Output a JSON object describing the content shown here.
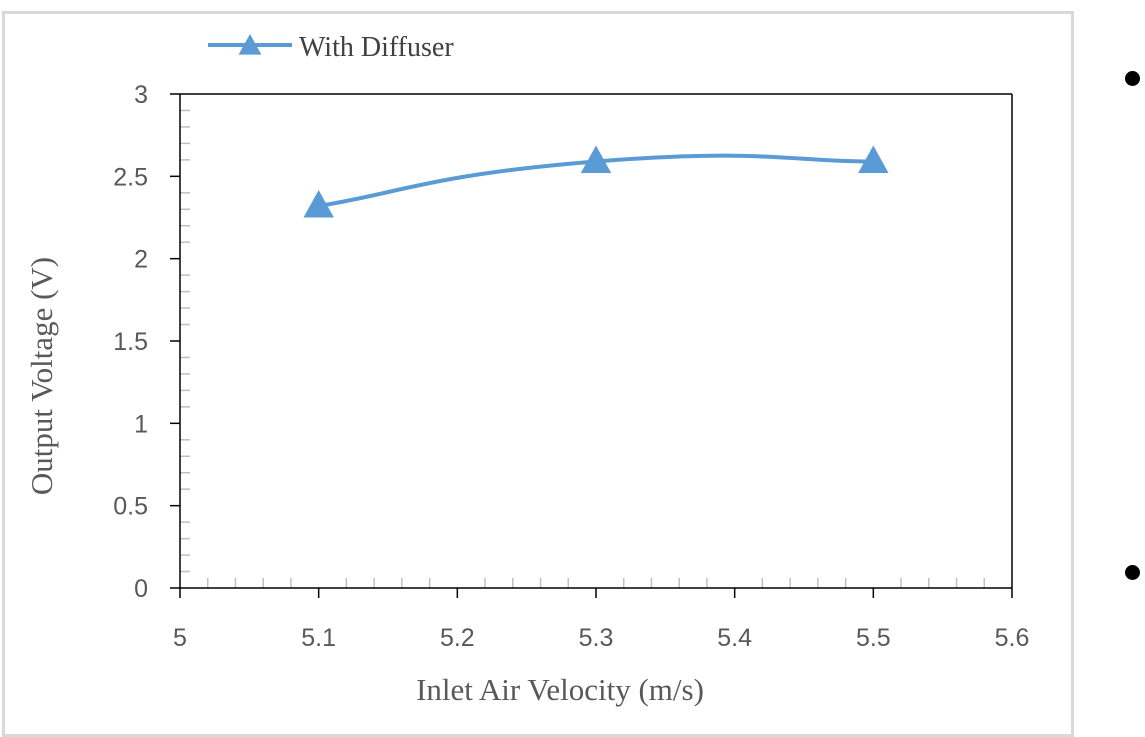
{
  "colors": {
    "series": "#5b9bd5",
    "axis": "#000000",
    "minor_tick": "#bfbfbf",
    "frame": "#d9d9d9",
    "text": "#595959"
  },
  "chart_data": {
    "type": "line",
    "title": "",
    "xlabel": "Inlet Air Velocity (m/s)",
    "ylabel": "Output Voltage (V)",
    "xlim": [
      5,
      5.6
    ],
    "ylim": [
      0,
      3
    ],
    "x_ticks": [
      "5",
      "5.1",
      "5.2",
      "5.3",
      "5.4",
      "5.5",
      "5.6"
    ],
    "y_ticks": [
      "0",
      "0.5",
      "1",
      "1.5",
      "2",
      "2.5",
      "3"
    ],
    "grid": false,
    "smoothed": true,
    "marker": "triangle",
    "legend_position": "top-left",
    "series": [
      {
        "name": "With Diffuser",
        "x": [
          5.1,
          5.3,
          5.5
        ],
        "y": [
          2.32,
          2.59,
          2.59
        ]
      }
    ]
  }
}
